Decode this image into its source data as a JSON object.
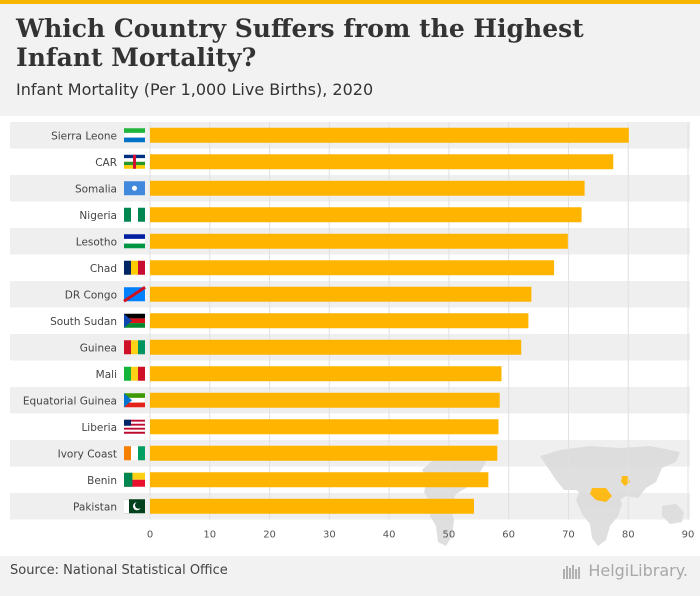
{
  "header": {
    "title": "Which Country Suffers from the Highest Infant Mortality?",
    "subtitle": "Infant Mortality (Per 1,000 Live Births), 2020"
  },
  "footer": {
    "source": "Source: National Statistical Office",
    "logo": "HelgiLibrary."
  },
  "colors": {
    "bar": "#ffb400",
    "band": "#efefef",
    "grid": "#e0e0e0",
    "label": "#444444",
    "map_land": "#d9d9d9",
    "map_highlight": "#ffb400"
  },
  "chart_data": {
    "type": "bar",
    "orientation": "horizontal",
    "title": "Which Country Suffers from the Highest Infant Mortality?",
    "subtitle": "Infant Mortality (Per 1,000 Live Births), 2020",
    "xlabel": "",
    "ylabel": "",
    "xlim": [
      0,
      90
    ],
    "xticks": [
      0,
      10,
      20,
      30,
      40,
      50,
      60,
      70,
      80,
      90
    ],
    "grid": true,
    "categories": [
      "Sierra Leone",
      "CAR",
      "Somalia",
      "Nigeria",
      "Lesotho",
      "Chad",
      "DR Congo",
      "South Sudan",
      "Guinea",
      "Mali",
      "Equatorial Guinea",
      "Liberia",
      "Ivory Coast",
      "Benin",
      "Pakistan"
    ],
    "values": [
      80.1,
      77.5,
      72.7,
      72.2,
      69.9,
      67.6,
      63.8,
      63.3,
      62.1,
      58.8,
      58.5,
      58.3,
      58.1,
      56.6,
      54.2
    ]
  }
}
